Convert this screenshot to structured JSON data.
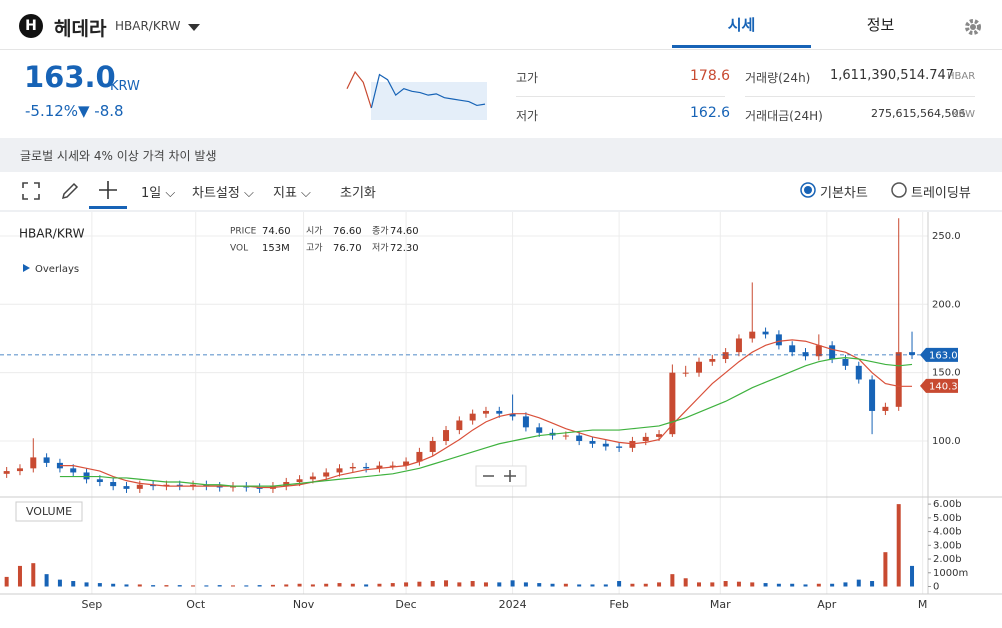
{
  "header": {
    "icon": "H",
    "coin": "헤데라",
    "pair": "HBAR/KRW",
    "tabs": [
      "시세",
      "정보"
    ]
  },
  "price": {
    "value": "163.0",
    "unit": "KRW",
    "change_rate": "-5.12%",
    "change": "▼ -8.8"
  },
  "stats": {
    "high_label": "고가",
    "high": "178.6",
    "low_label": "저가",
    "low": "162.6",
    "volume_label": "거래량(24h)",
    "volume": "1,611,390,514.747",
    "volume_unit": "HBAR",
    "amount_label": "거래대금(24H)",
    "amount": "275,615,564,506",
    "amount_unit": "KRW"
  },
  "sparkline": [
    165,
    178,
    170,
    150,
    176,
    172,
    160,
    165,
    163,
    162,
    160,
    161,
    158,
    157,
    156,
    155,
    152,
    153
  ],
  "notice": "글로벌 시세와 4% 이상 가격 차이 발생",
  "toolbar": {
    "interval": "1일",
    "settings": "차트설정",
    "indicators": "지표",
    "reset": "초기화",
    "basic": "기본차트",
    "tradingview": "트레이딩뷰"
  },
  "chart": {
    "type": "candlestick",
    "symbol": "HBAR/KRW",
    "overlays": "Overlays",
    "volume_label": "VOLUME",
    "info": [
      [
        "PRICE",
        "74.60"
      ],
      [
        "시가",
        "76.60"
      ],
      [
        "종가",
        "74.60"
      ],
      [
        "VOL",
        "153M"
      ],
      [
        "고가",
        "76.70"
      ],
      [
        "저가",
        "72.30"
      ]
    ],
    "xlim": [
      -0.5,
      69.2
    ],
    "xticks": [
      {
        "value": 6.4,
        "label": "Sep"
      },
      {
        "value": 14.2,
        "label": "Oct"
      },
      {
        "value": 22.3,
        "label": "Nov"
      },
      {
        "value": 30,
        "label": "Dec"
      },
      {
        "value": 38,
        "label": "2024"
      },
      {
        "value": 46,
        "label": "Feb"
      },
      {
        "value": 53.6,
        "label": "Mar"
      },
      {
        "value": 61.6,
        "label": "Apr"
      },
      {
        "value": 68.8,
        "label": "M"
      }
    ],
    "ylim": [
      60.5,
      266.8
    ],
    "yticks": [
      {
        "value": 100,
        "label": "100.0"
      },
      {
        "value": 150,
        "label": "150.0"
      },
      {
        "value": 200,
        "label": "200.0"
      },
      {
        "value": 250,
        "label": "250.0"
      }
    ],
    "vlim": [
      -400,
      6300
    ],
    "vticks": [
      0,
      {
        "value": 1000,
        "label": "1000m"
      },
      {
        "value": 2000,
        "label": "2.00b"
      },
      {
        "value": 3000,
        "label": "3.00b"
      },
      {
        "value": 4000,
        "label": "4.00b"
      },
      {
        "value": 5000,
        "label": "5.00b"
      },
      {
        "value": 6000,
        "label": "6.00b"
      }
    ],
    "up_color": "#c84a31",
    "down_color": "#1763b6",
    "candles": {
      "open": [
        76,
        78,
        80,
        88,
        84,
        80,
        77,
        72,
        70,
        67,
        65,
        68,
        67,
        68,
        67,
        68,
        67,
        66,
        67,
        66,
        65,
        67,
        70,
        72,
        74,
        77,
        80,
        81,
        80,
        82,
        82,
        85,
        92,
        100,
        108,
        115,
        120,
        122,
        120,
        118,
        110,
        106,
        104,
        104,
        100,
        98,
        96,
        95,
        100,
        103,
        105,
        150,
        150,
        158,
        160,
        165,
        175,
        180,
        178,
        170,
        165,
        162,
        170,
        160,
        155,
        145,
        122,
        125,
        165
      ],
      "high": [
        81,
        83,
        102,
        91,
        87,
        83,
        80,
        75,
        73,
        70,
        71,
        71,
        71,
        71,
        71,
        71,
        70,
        70,
        70,
        69,
        70,
        73,
        75,
        77,
        80,
        83,
        84,
        84,
        85,
        85,
        88,
        95,
        103,
        111,
        118,
        123,
        125,
        125,
        134,
        121,
        113,
        109,
        107,
        107,
        103,
        101,
        99,
        103,
        106,
        108,
        156,
        155,
        161,
        163,
        168,
        178,
        216,
        183,
        181,
        173,
        168,
        178,
        173,
        163,
        158,
        148,
        128,
        263,
        180
      ],
      "low": [
        73,
        75,
        77,
        81,
        77,
        74,
        69,
        67,
        64,
        62,
        62,
        64,
        64,
        64,
        64,
        64,
        63,
        63,
        63,
        62,
        62,
        64,
        67,
        69,
        71,
        74,
        77,
        77,
        77,
        79,
        79,
        82,
        89,
        97,
        105,
        112,
        117,
        117,
        115,
        107,
        103,
        101,
        101,
        97,
        95,
        93,
        92,
        92,
        97,
        100,
        103,
        147,
        147,
        155,
        157,
        162,
        172,
        175,
        167,
        162,
        159,
        159,
        157,
        152,
        142,
        105,
        119,
        122,
        160
      ],
      "close": [
        78,
        80,
        88,
        84,
        80,
        77,
        72,
        70,
        67,
        65,
        68,
        67,
        68,
        67,
        68,
        67,
        66,
        67,
        66,
        65,
        67,
        70,
        72,
        74,
        77,
        80,
        81,
        80,
        82,
        82,
        85,
        92,
        100,
        108,
        115,
        120,
        122,
        120,
        118,
        110,
        106,
        104,
        104,
        100,
        98,
        96,
        95,
        100,
        103,
        105,
        150,
        150,
        158,
        160,
        165,
        175,
        180,
        178,
        170,
        165,
        162,
        170,
        160,
        155,
        145,
        122,
        125,
        165,
        163
      ],
      "volume": [
        700,
        1500,
        1700,
        900,
        500,
        400,
        300,
        250,
        200,
        150,
        150,
        100,
        100,
        100,
        80,
        80,
        100,
        80,
        80,
        100,
        120,
        150,
        200,
        150,
        200,
        250,
        200,
        150,
        200,
        250,
        300,
        350,
        400,
        450,
        300,
        400,
        300,
        300,
        450,
        300,
        250,
        200,
        200,
        150,
        150,
        150,
        400,
        200,
        200,
        300,
        900,
        600,
        300,
        300,
        400,
        350,
        300,
        250,
        200,
        200,
        150,
        200,
        200,
        300,
        500,
        400,
        2500,
        6000,
        1500
      ]
    },
    "ma": [
      {
        "color": "#d9503a",
        "values": [
          null,
          null,
          null,
          null,
          82,
          82,
          80,
          78,
          74,
          71,
          69,
          68,
          67,
          67,
          67,
          67,
          67,
          67,
          67,
          66,
          66,
          67,
          68,
          70,
          72,
          75,
          77,
          79,
          80,
          81,
          82,
          85,
          89,
          95,
          101,
          108,
          114,
          118,
          120,
          120,
          117,
          113,
          109,
          106,
          103,
          101,
          99,
          98,
          99,
          101,
          112,
          122,
          132,
          142,
          150,
          158,
          165,
          170,
          173,
          174,
          173,
          170,
          167,
          165,
          160,
          150,
          142,
          140,
          140
        ]
      },
      {
        "color": "#3fb23f",
        "values": [
          null,
          null,
          null,
          null,
          74,
          74,
          74,
          74,
          73,
          73,
          72,
          71,
          70,
          70,
          69,
          68,
          68,
          67,
          67,
          67,
          67,
          68,
          69,
          70,
          71,
          72,
          73,
          74,
          75,
          76,
          78,
          80,
          83,
          86,
          89,
          92,
          95,
          98,
          100,
          102,
          104,
          105,
          106,
          107,
          108,
          108,
          108,
          109,
          110,
          111,
          114,
          117,
          121,
          125,
          129,
          134,
          139,
          143,
          147,
          151,
          155,
          158,
          160,
          161,
          160,
          158,
          156,
          155,
          156
        ]
      }
    ],
    "price_tags": [
      {
        "value": 163.0,
        "label": "163.0",
        "color": "#1763b6"
      },
      {
        "value": 140.3,
        "label": "140.3",
        "color": "#c84a31"
      }
    ]
  }
}
